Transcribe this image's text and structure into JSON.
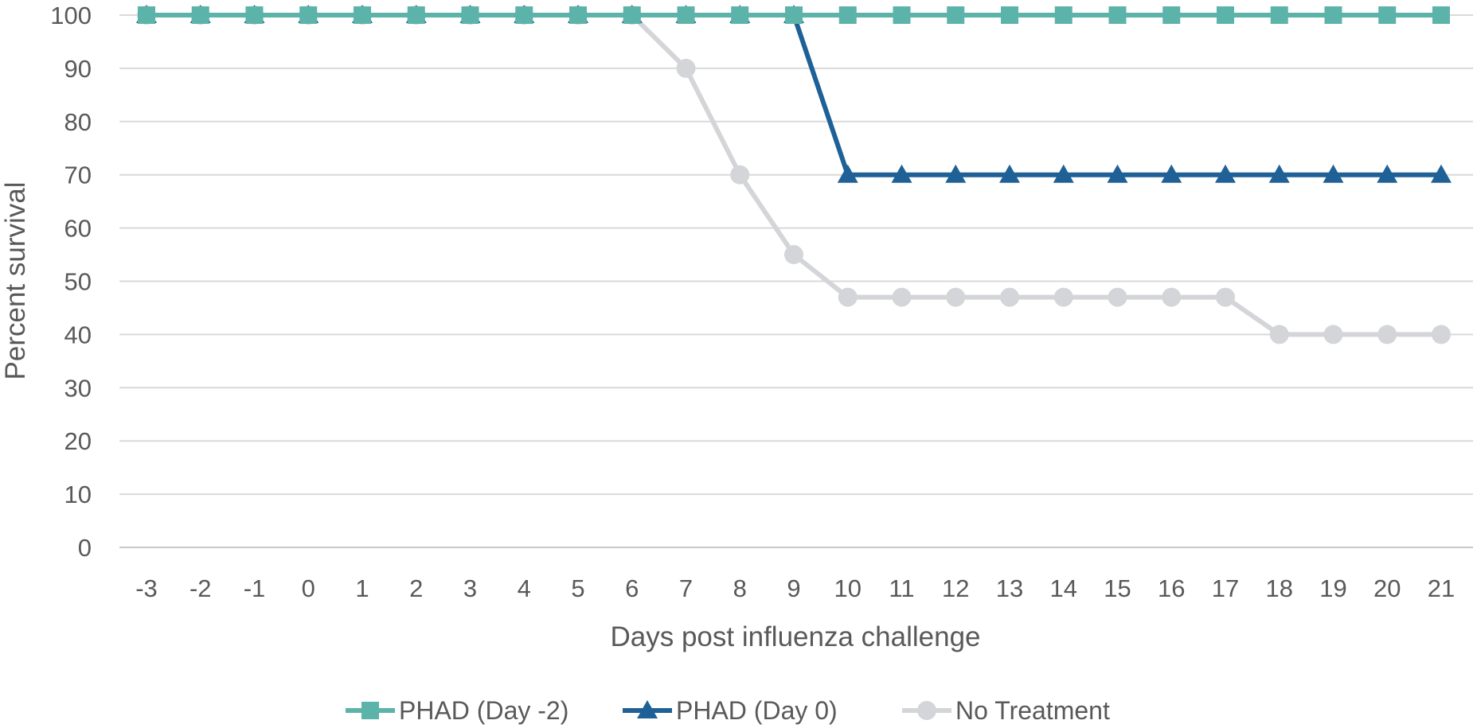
{
  "chart_data": {
    "type": "line",
    "title": "",
    "xlabel": "Days post influenza challenge",
    "ylabel": "Percent survival",
    "ylim": [
      0,
      100
    ],
    "yticks": [
      0,
      10,
      20,
      30,
      40,
      50,
      60,
      70,
      80,
      90,
      100
    ],
    "grid": "horizontal",
    "legend_position": "bottom",
    "x": [
      -3,
      -2,
      -1,
      0,
      1,
      2,
      3,
      4,
      5,
      6,
      7,
      8,
      9,
      10,
      11,
      12,
      13,
      14,
      15,
      16,
      17,
      18,
      19,
      20,
      21
    ],
    "series": [
      {
        "name": "PHAD (Day -2)",
        "color": "#5cb3a9",
        "marker": "square",
        "values": [
          100,
          100,
          100,
          100,
          100,
          100,
          100,
          100,
          100,
          100,
          100,
          100,
          100,
          100,
          100,
          100,
          100,
          100,
          100,
          100,
          100,
          100,
          100,
          100,
          100
        ]
      },
      {
        "name": "PHAD (Day 0)",
        "color": "#1f6196",
        "marker": "triangle",
        "values": [
          100,
          100,
          100,
          100,
          100,
          100,
          100,
          100,
          100,
          100,
          100,
          100,
          100,
          70,
          70,
          70,
          70,
          70,
          70,
          70,
          70,
          70,
          70,
          70,
          70
        ]
      },
      {
        "name": "No Treatment",
        "color": "#d4d5d9",
        "marker": "circle",
        "values": [
          100,
          100,
          100,
          100,
          100,
          100,
          100,
          100,
          100,
          100,
          90,
          70,
          55,
          47,
          47,
          47,
          47,
          47,
          47,
          47,
          47,
          40,
          40,
          40,
          40
        ]
      }
    ]
  }
}
